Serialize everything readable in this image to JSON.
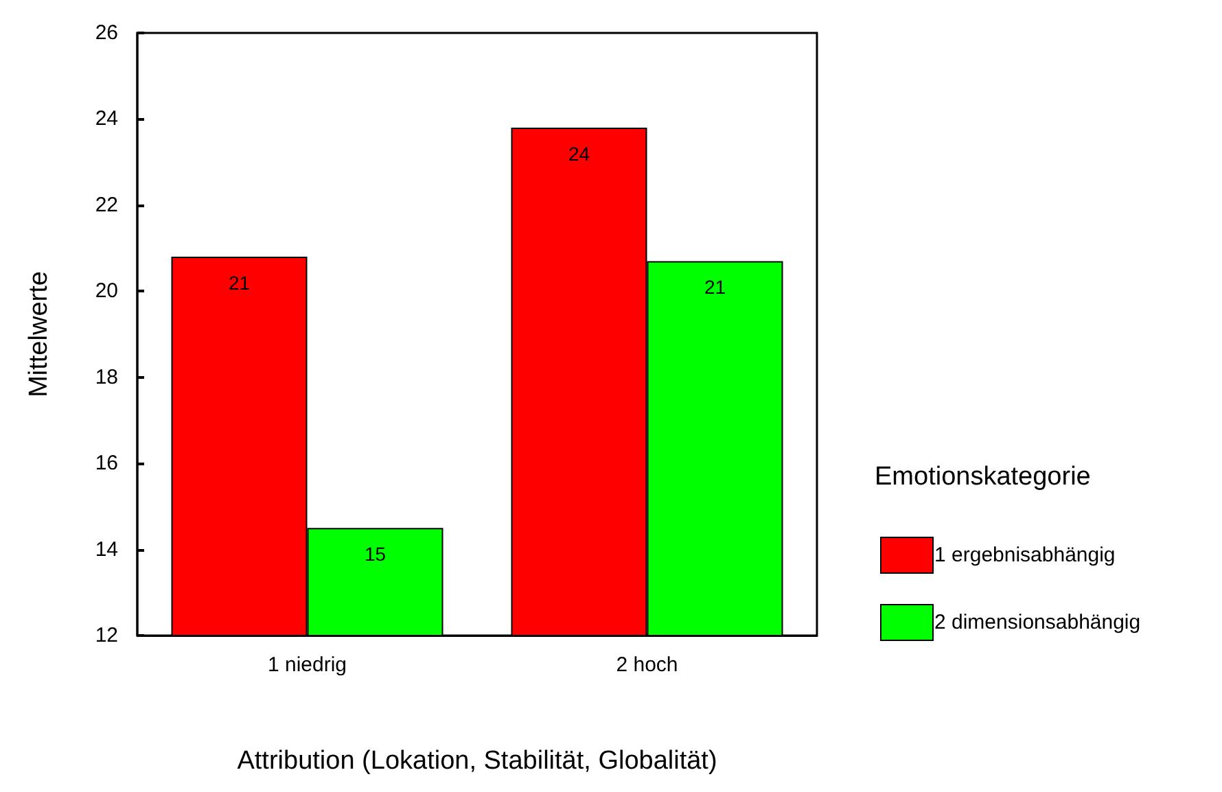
{
  "chart_data": {
    "type": "bar",
    "xlabel": "Attribution (Lokation, Stabilität, Globalität)",
    "ylabel": "Mittelwerte",
    "legend_title": "Emotionskategorie",
    "categories": [
      "1 niedrig",
      "2 hoch"
    ],
    "series": [
      {
        "name": "1 ergebnisabhängig",
        "color": "#ff0000",
        "values": [
          20.8,
          23.8
        ],
        "value_labels": [
          "21",
          "24"
        ]
      },
      {
        "name": "2 dimensionsabhängig",
        "color": "#00ff00",
        "values": [
          14.5,
          20.7
        ],
        "value_labels": [
          "15",
          "21"
        ]
      }
    ],
    "ylim": [
      12,
      26
    ],
    "yticks": [
      12,
      14,
      16,
      18,
      20,
      22,
      24,
      26
    ],
    "grid": false,
    "legend": "right"
  }
}
